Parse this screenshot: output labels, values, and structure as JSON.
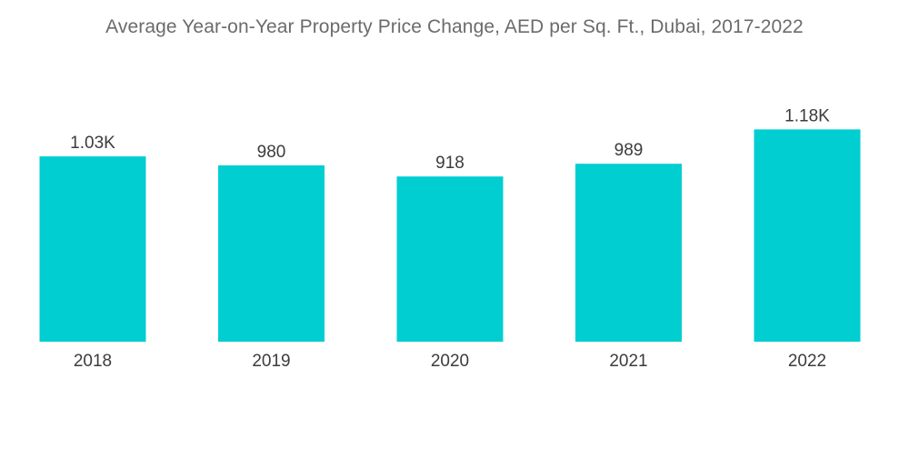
{
  "chart_data": {
    "type": "bar",
    "title": "Average Year-on-Year Property Price Change, AED per Sq. Ft., Dubai, 2017-2022",
    "categories": [
      "2018",
      "2019",
      "2020",
      "2021",
      "2022"
    ],
    "values": [
      1030,
      980,
      918,
      989,
      1180
    ],
    "data_labels": [
      "1.03K",
      "980",
      "918",
      "989",
      "1.18K"
    ],
    "xlabel": "",
    "ylabel": "",
    "ylim": [
      0,
      1200
    ],
    "grid": false,
    "legend": "none",
    "colors": {
      "bar": "#00CED1"
    }
  }
}
